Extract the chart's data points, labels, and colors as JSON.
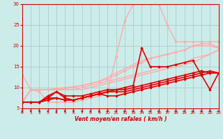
{
  "xlabel": "Vent moyen/en rafales ( km/h )",
  "bg_color": "#ccecea",
  "grid_color": "#aacccc",
  "x_ticks": [
    0,
    1,
    2,
    3,
    4,
    5,
    6,
    7,
    8,
    9,
    10,
    11,
    12,
    13,
    14,
    15,
    16,
    17,
    18,
    19,
    20,
    21,
    22,
    23
  ],
  "y_ticks": [
    5,
    10,
    15,
    20,
    25,
    30
  ],
  "x_min": 0,
  "x_max": 23,
  "y_min": 5,
  "y_max": 30,
  "series": [
    {
      "x": [
        0,
        1,
        2,
        3,
        4,
        5,
        6,
        7,
        8,
        9,
        10,
        11,
        12,
        13,
        14,
        15,
        16,
        17,
        18,
        19,
        20,
        21,
        22,
        23
      ],
      "y": [
        6.5,
        9.5,
        9.5,
        9.5,
        9.8,
        10,
        10.2,
        10.5,
        11,
        11.5,
        12,
        13,
        14,
        15,
        16,
        17,
        17.5,
        18,
        18.5,
        19,
        20,
        20.5,
        20.5,
        19.5
      ],
      "color": "#ffaaaa",
      "lw": 1.0,
      "marker": "o",
      "ms": 2.0
    },
    {
      "x": [
        0,
        1,
        2,
        3,
        4,
        5,
        6,
        7,
        8,
        9,
        10,
        11,
        12,
        13,
        14,
        15,
        16,
        17,
        18,
        19,
        20,
        21,
        22,
        23
      ],
      "y": [
        13,
        9.5,
        9,
        6.5,
        6.5,
        6.5,
        6.5,
        7,
        7.5,
        8,
        9,
        17.5,
        26,
        30,
        30,
        30,
        30,
        25,
        21,
        21,
        21,
        21,
        21,
        21
      ],
      "color": "#ffaaaa",
      "lw": 1.0,
      "marker": "o",
      "ms": 2.0
    },
    {
      "x": [
        0,
        1,
        2,
        3,
        4,
        5,
        6,
        7,
        8,
        9,
        10,
        11,
        12,
        13,
        14,
        15,
        16,
        17,
        18,
        19,
        20,
        21,
        22,
        23
      ],
      "y": [
        6.5,
        9.5,
        9.5,
        9.5,
        9.5,
        9.8,
        10,
        10.5,
        11,
        11.5,
        12.5,
        13.5,
        14.5,
        15.5,
        16.5,
        17,
        17.5,
        18,
        18.5,
        19,
        20,
        20,
        20,
        19.5
      ],
      "color": "#ffaaaa",
      "lw": 1.0,
      "marker": null
    },
    {
      "x": [
        0,
        1,
        2,
        3,
        4,
        5,
        6,
        7,
        8,
        9,
        10,
        11,
        12,
        13,
        14,
        15,
        16,
        17,
        18,
        19,
        20,
        21,
        22,
        23
      ],
      "y": [
        6.5,
        9.5,
        9.5,
        9.5,
        9.5,
        9.5,
        9.5,
        10,
        10.5,
        11,
        11.5,
        12,
        12.5,
        13,
        13.5,
        14,
        14.5,
        15,
        15.5,
        16,
        17,
        17.5,
        18,
        19
      ],
      "color": "#ffaaaa",
      "lw": 1.0,
      "marker": null
    },
    {
      "x": [
        0,
        1,
        2,
        3,
        4,
        5,
        6,
        7,
        8,
        9,
        10,
        11,
        12,
        13,
        14,
        15,
        16,
        17,
        18,
        19,
        20,
        21,
        22,
        23
      ],
      "y": [
        6.5,
        9.5,
        9.5,
        9.5,
        9.5,
        9.5,
        9.5,
        9.5,
        10,
        10.5,
        11,
        11.5,
        12,
        12.5,
        13,
        13.5,
        14,
        14.5,
        15,
        15.5,
        16,
        17,
        18,
        19
      ],
      "color": "#ffaaaa",
      "lw": 1.0,
      "marker": null
    },
    {
      "x": [
        0,
        1,
        2,
        3,
        4,
        5,
        6,
        7,
        8,
        9,
        10,
        11,
        12,
        13,
        14,
        15,
        16,
        17,
        18,
        19,
        20,
        21,
        22,
        23
      ],
      "y": [
        6.5,
        6.5,
        6.5,
        7.5,
        9,
        7.5,
        7,
        7.5,
        8,
        8.5,
        9,
        9.5,
        9.5,
        10,
        10.5,
        11,
        11.5,
        12,
        12.5,
        13,
        13.5,
        14,
        13.5,
        13.5
      ],
      "color": "#dd0000",
      "lw": 1.2,
      "marker": "D",
      "ms": 1.8
    },
    {
      "x": [
        0,
        1,
        2,
        3,
        4,
        5,
        6,
        7,
        8,
        9,
        10,
        11,
        12,
        13,
        14,
        15,
        16,
        17,
        18,
        19,
        20,
        21,
        22,
        23
      ],
      "y": [
        6.5,
        6.5,
        6.5,
        8,
        9,
        8,
        8,
        8,
        8.5,
        9,
        9.5,
        9.5,
        10,
        10.5,
        19.5,
        15,
        15,
        15,
        15.5,
        16,
        16.5,
        13,
        9.5,
        13.5
      ],
      "color": "#dd0000",
      "lw": 1.2,
      "marker": "D",
      "ms": 1.8
    },
    {
      "x": [
        0,
        1,
        2,
        3,
        4,
        5,
        6,
        7,
        8,
        9,
        10,
        11,
        12,
        13,
        14,
        15,
        16,
        17,
        18,
        19,
        20,
        21,
        22,
        23
      ],
      "y": [
        6.5,
        6.5,
        6.5,
        7,
        7.5,
        7,
        7,
        7.5,
        8,
        8.5,
        8,
        8,
        8.5,
        9,
        9.5,
        10,
        10.5,
        11,
        11.5,
        12,
        12.5,
        13,
        13.5,
        13.5
      ],
      "color": "#dd0000",
      "lw": 1.2,
      "marker": "D",
      "ms": 1.8
    },
    {
      "x": [
        0,
        1,
        2,
        3,
        4,
        5,
        6,
        7,
        8,
        9,
        10,
        11,
        12,
        13,
        14,
        15,
        16,
        17,
        18,
        19,
        20,
        21,
        22,
        23
      ],
      "y": [
        6.5,
        6.5,
        6.5,
        7.5,
        7.5,
        7,
        7,
        7.5,
        8,
        8.5,
        9,
        9,
        9,
        9.5,
        10,
        10.5,
        11,
        11.5,
        12,
        12.5,
        13,
        13.5,
        14,
        13.5
      ],
      "color": "#dd0000",
      "lw": 1.2,
      "marker": "^",
      "ms": 2.0
    }
  ],
  "arrow_angles": [
    225,
    225,
    225,
    225,
    225,
    225,
    225,
    225,
    225,
    225,
    225,
    225,
    225,
    225,
    270,
    270,
    270,
    270,
    270,
    270,
    270,
    315,
    270,
    225
  ]
}
